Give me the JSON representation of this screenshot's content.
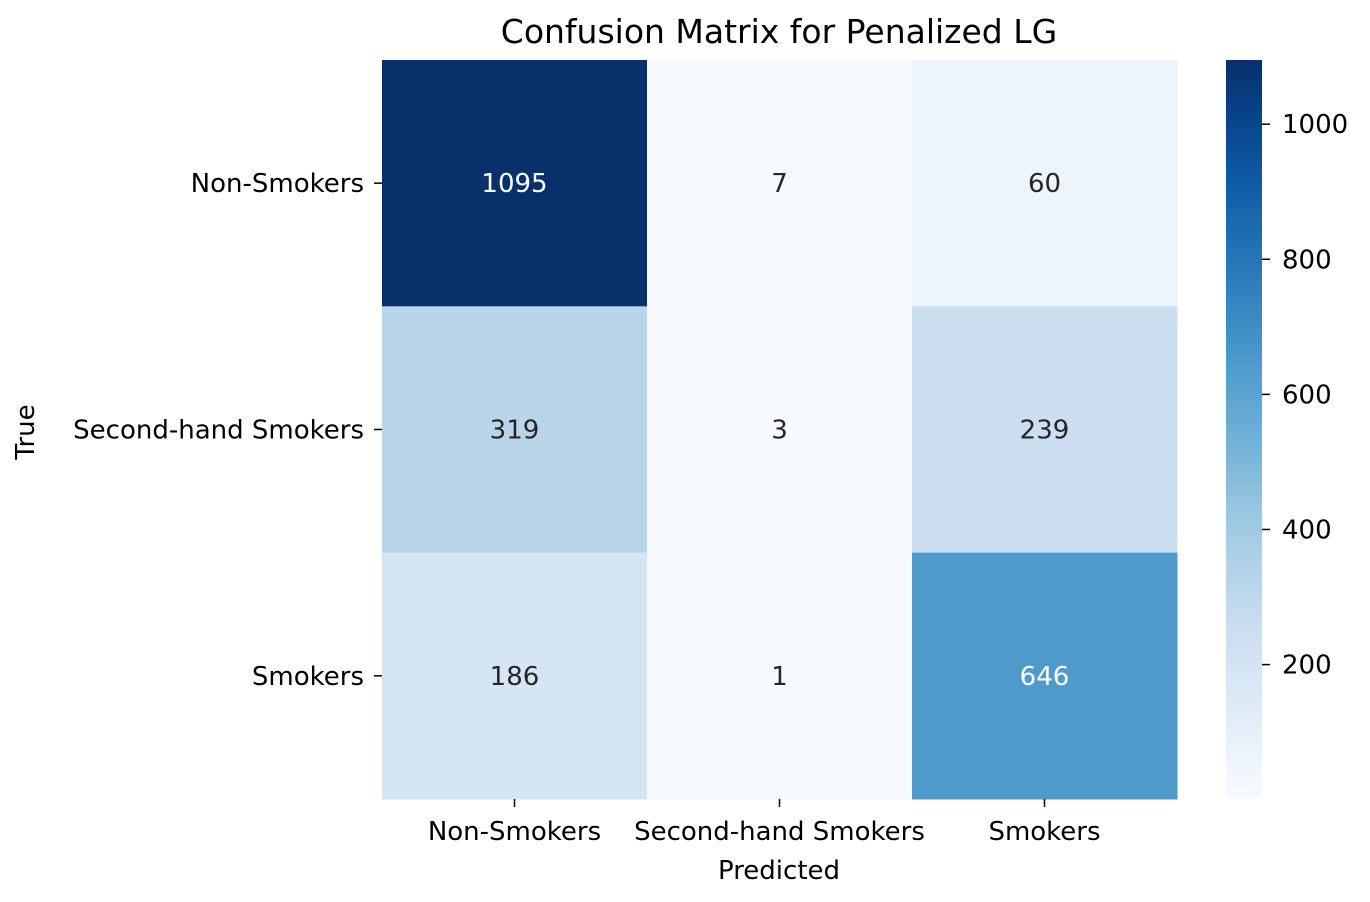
{
  "chart_data": {
    "type": "heatmap",
    "title": "Confusion Matrix for Penalized LG",
    "xlabel": "Predicted",
    "ylabel": "True",
    "x_categories": [
      "Non-Smokers",
      "Second-hand Smokers",
      "Smokers"
    ],
    "y_categories": [
      "Non-Smokers",
      "Second-hand Smokers",
      "Smokers"
    ],
    "values": [
      [
        1095,
        7,
        60
      ],
      [
        319,
        3,
        239
      ],
      [
        186,
        1,
        646
      ]
    ],
    "colormap": "Blues",
    "colorbar": {
      "min": 1,
      "max": 1095,
      "ticks": [
        200,
        400,
        600,
        800,
        1000
      ]
    }
  }
}
